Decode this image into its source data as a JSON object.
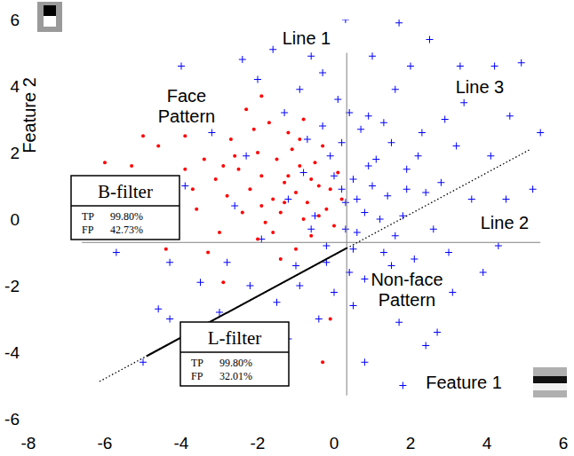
{
  "chart_data": {
    "type": "scatter",
    "x_label": "Feature 1",
    "y_label": "Feature 2",
    "xlim": [
      -8,
      6
    ],
    "ylim": [
      -6,
      6
    ],
    "xticks": [
      -8,
      -6,
      -4,
      -2,
      0,
      2,
      4,
      6
    ],
    "yticks": [
      -6,
      -4,
      -2,
      0,
      2,
      4,
      6
    ],
    "grid": false,
    "series": [
      {
        "name": "Non-face Pattern",
        "type": "scatter",
        "color": "#0000ff",
        "marker": "plus",
        "x": [
          0.3,
          0.5,
          0.8,
          1.1,
          0.2,
          0.6,
          1.4,
          1.9,
          2.3,
          0.9,
          0.1,
          1.6,
          2.8,
          3.2,
          2.6,
          1.3,
          0.4,
          -0.2,
          -0.5,
          -0.8,
          -0.1,
          0.7,
          1.8,
          2.1,
          3.6,
          4.1,
          4.2,
          4.9,
          2.5,
          1.7,
          0.3,
          -0.6,
          -1.6,
          -2.0,
          -0.9,
          -3.2,
          -4.0,
          -5.7,
          -4.3,
          -2.8,
          -1.5,
          -3.0,
          -4.3,
          -5.0,
          -0.4,
          0.8,
          1.8,
          2.4,
          3.1,
          4.3,
          5.2,
          4.6,
          3.4,
          2.0,
          1.0,
          -0.3,
          -1.3,
          -2.3,
          -1.9,
          -1.0,
          0.0,
          0.5,
          1.5,
          -2.2,
          -3.5,
          -4.6,
          -3.9,
          -2.6,
          1.5,
          2.4,
          0.2,
          0.9,
          0.5,
          1.2,
          0.0,
          -0.3,
          0.4,
          1.3,
          2.9,
          3.0,
          3.9,
          4.5,
          2.2,
          1.6,
          0.6,
          1.0,
          -0.6,
          -1.2,
          -0.7,
          0.8,
          -0.2,
          1.7,
          -1.2,
          -2.4,
          3.3,
          5.4,
          2.7,
          -0.9,
          0.3,
          1.9
        ],
        "values": [
          0.5,
          1.2,
          0.2,
          1.8,
          2.3,
          -0.4,
          0.7,
          1.5,
          2.6,
          3.1,
          3.6,
          3.9,
          1.1,
          2.2,
          -0.3,
          -1.0,
          -1.6,
          -0.8,
          0.1,
          1.4,
          1.9,
          2.7,
          0.1,
          -1.2,
          0.6,
          1.9,
          4.6,
          4.7,
          5.4,
          5.9,
          6.0,
          4.9,
          5.1,
          4.2,
          3.9,
          2.6,
          4.6,
          -1.0,
          -1.3,
          -1.3,
          -2.5,
          -2.8,
          -3.0,
          -4.3,
          -3.0,
          -4.3,
          -5.0,
          -3.8,
          -2.2,
          -0.8,
          0.9,
          3.1,
          3.5,
          4.6,
          4.9,
          4.4,
          3.2,
          1.9,
          -0.6,
          -1.4,
          -2.2,
          -2.6,
          -1.4,
          -2.0,
          -1.9,
          -2.7,
          1.0,
          0.4,
          2.3,
          0.8,
          0.9,
          1.6,
          -0.9,
          0.0,
          1.3,
          2.8,
          3.2,
          2.9,
          3.0,
          -1.0,
          -1.6,
          0.6,
          1.9,
          -0.5,
          0.6,
          1.0,
          -0.3,
          0.6,
          2.4,
          -1.8,
          -1.3,
          -3.1,
          -3.6,
          4.8,
          4.6,
          2.6,
          -3.4,
          -2.0,
          -0.3,
          0.9
        ]
      },
      {
        "name": "Face Pattern",
        "type": "scatter",
        "color": "#ff0000",
        "marker": "dot",
        "x": [
          -1.0,
          -1.3,
          -0.7,
          -1.6,
          -0.4,
          -1.9,
          -2.2,
          -0.9,
          -1.4,
          -0.2,
          -2.5,
          -2.8,
          -1.1,
          -0.5,
          -1.8,
          -0.1,
          -2.0,
          -3.1,
          -1.5,
          -0.8,
          -2.4,
          -3.4,
          -3.7,
          -1.2,
          -2.7,
          0.1,
          0.2,
          -0.3,
          -1.7,
          -3.9,
          -4.6,
          -5.3,
          -6.0,
          -3.0,
          -2.0,
          -0.6,
          -1.0,
          0.0,
          -3.9,
          -2.3,
          -0.8,
          -1.4,
          -4.4,
          -3.3,
          -0.3,
          -0.1,
          -2.9,
          -1.9,
          -1.2,
          -0.6,
          -2.6,
          -3.6,
          -1.6,
          -0.9,
          -2.1,
          -0.4,
          -1.3,
          -2.9,
          -5.0,
          -1.9
        ],
        "values": [
          0.8,
          1.1,
          0.5,
          0.6,
          1.0,
          1.3,
          0.9,
          1.6,
          0.2,
          0.3,
          1.5,
          0.7,
          2.1,
          1.7,
          -0.1,
          0.9,
          2.0,
          1.2,
          1.8,
          0.0,
          0.2,
          1.8,
          0.9,
          2.6,
          2.4,
          1.4,
          0.6,
          2.2,
          2.9,
          1.5,
          2.2,
          1.6,
          1.7,
          -0.4,
          -0.6,
          -0.5,
          -0.9,
          -0.2,
          2.5,
          3.3,
          3.0,
          -1.2,
          -0.9,
          -1.0,
          -4.3,
          -3.0,
          -1.9,
          0.4,
          1.3,
          1.2,
          1.9,
          0.3,
          -0.4,
          2.4,
          2.7,
          0.1,
          0.5,
          1.6,
          2.5,
          3.7
        ]
      },
      {
        "name": "Line 1",
        "type": "line",
        "color": "#808080",
        "line_style": "solid",
        "x": [
          0.33,
          0.33
        ],
        "values": [
          -5.3,
          5.0
        ]
      },
      {
        "name": "Line 2",
        "type": "line",
        "color": "#808080",
        "line_style": "solid",
        "x": [
          -6.6,
          5.4
        ],
        "values": [
          -0.7,
          -0.7
        ]
      },
      {
        "name": "Line 3",
        "type": "line",
        "color": "#000000",
        "line_style": "dotted",
        "x": [
          -6.14,
          5.14
        ],
        "values": [
          -4.88,
          2.1
        ]
      },
      {
        "type": "line",
        "color": "#000000",
        "line_style": "solid",
        "x": [
          -4.91,
          0.33
        ],
        "values": [
          -4.12,
          -0.87
        ]
      }
    ],
    "annotations": [
      {
        "name": "B-filter",
        "rows": [
          [
            "TP",
            "99.80%"
          ],
          [
            "FP",
            "42.73%"
          ]
        ]
      },
      {
        "name": "L-filter",
        "rows": [
          [
            "TP",
            "99.80%"
          ],
          [
            "FP",
            "32.01%"
          ]
        ]
      }
    ]
  }
}
